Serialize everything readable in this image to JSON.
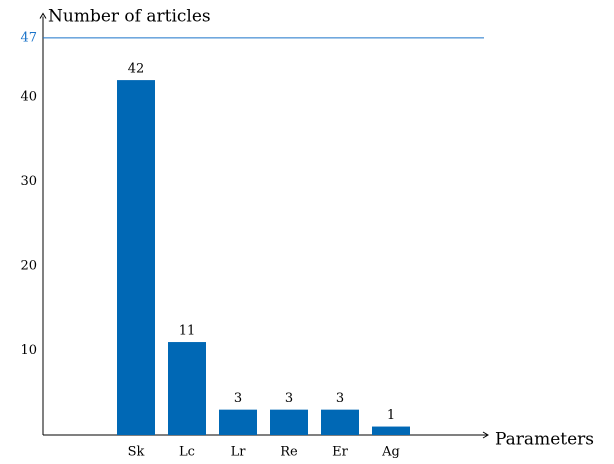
{
  "chart_data": {
    "type": "bar",
    "categories": [
      "Sk",
      "Lc",
      "Lr",
      "Re",
      "Er",
      "Ag"
    ],
    "values": [
      42,
      11,
      3,
      3,
      3,
      1
    ],
    "color": "#0068b5",
    "ylim": [
      0,
      50
    ],
    "yticks": [
      10,
      20,
      30,
      40
    ],
    "y_axis_label": "Number of articles",
    "x_axis_label": "Parameters",
    "reference_line": 47,
    "reference_color": "#1a73c9",
    "grid": false
  }
}
